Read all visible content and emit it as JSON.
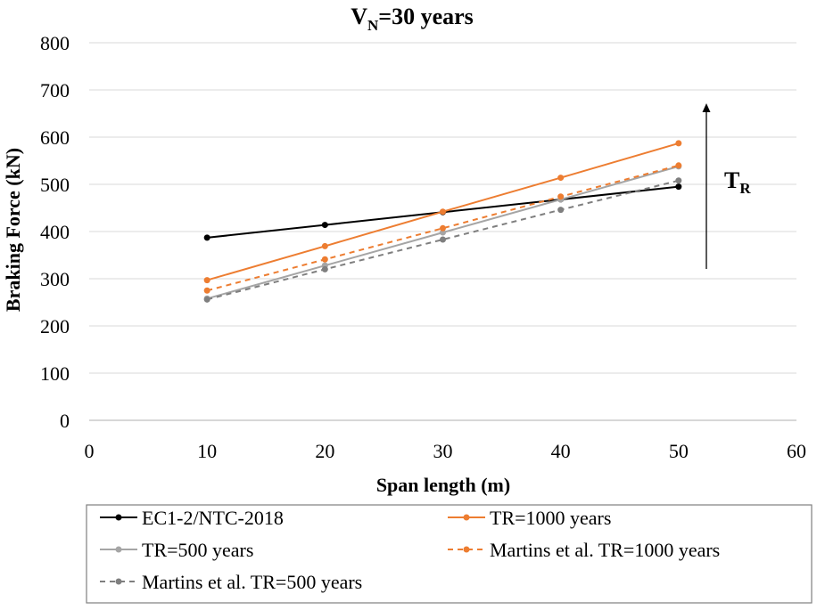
{
  "chart_data": {
    "type": "line",
    "title": {
      "main": "V",
      "sub": "N",
      "rest": "=30 years"
    },
    "xlabel": "Span length (m)",
    "ylabel": "Braking Force (kN)",
    "xlim": [
      0,
      60
    ],
    "ylim": [
      0,
      800
    ],
    "xticks": [
      0,
      10,
      20,
      30,
      40,
      50,
      60
    ],
    "yticks": [
      0,
      100,
      200,
      300,
      400,
      500,
      600,
      700,
      800
    ],
    "grid": "horizontal",
    "legend_position": "bottom",
    "x": [
      10,
      20,
      30,
      40,
      50
    ],
    "series": [
      {
        "name": "EC1-2/NTC-2018",
        "values": [
          387,
          414,
          441,
          468,
          495
        ],
        "color": "#000000",
        "dashed": false
      },
      {
        "name": "TR=1000 years",
        "values": [
          297,
          369,
          442,
          514,
          587
        ],
        "color": "#ED7D31",
        "dashed": false
      },
      {
        "name": "TR=500 years",
        "values": [
          258,
          328,
          398,
          468,
          538
        ],
        "color": "#A5A5A5",
        "dashed": false
      },
      {
        "name": "Martins et al. TR=1000 years",
        "values": [
          275,
          341,
          407,
          474,
          540
        ],
        "color": "#ED7D31",
        "dashed": true
      },
      {
        "name": "Martins et al. TR=500 years",
        "values": [
          256,
          320,
          383,
          446,
          508
        ],
        "color": "#7F7F7F",
        "dashed": true
      }
    ],
    "annotation": {
      "main": "T",
      "sub": "R"
    }
  }
}
